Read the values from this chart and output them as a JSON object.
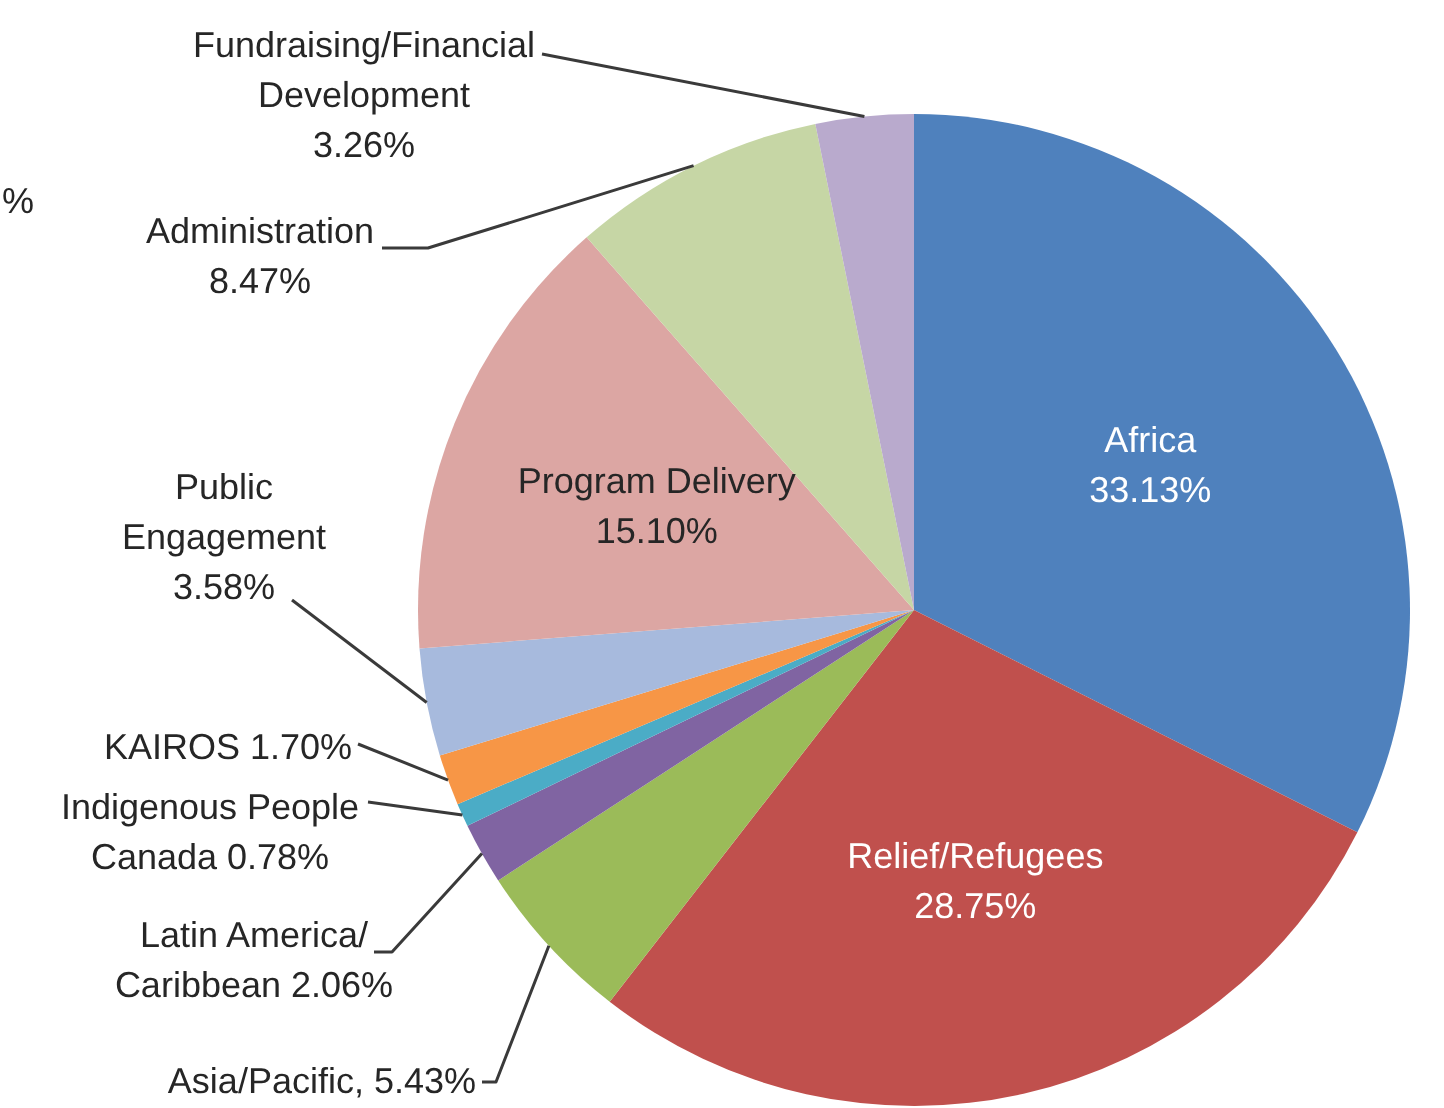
{
  "chart_data": {
    "type": "pie",
    "categories": [
      "Africa",
      "Relief/Refugees",
      "Asia/Pacific",
      "Latin America/Caribbean",
      "Indigenous People Canada",
      "KAIROS",
      "Public Engagement",
      "Program Delivery",
      "Administration",
      "Fundraising/Financial Development"
    ],
    "values": [
      33.13,
      28.75,
      5.43,
      2.06,
      0.78,
      1.7,
      3.58,
      15.1,
      8.47,
      3.26
    ],
    "colors": [
      "#4f81bd",
      "#c0504d",
      "#9bbb59",
      "#8064a2",
      "#4bacc6",
      "#f79646",
      "#a7badd",
      "#dca6a3",
      "#c6d6a5",
      "#b9aacd"
    ],
    "value_labels": [
      "33.13%",
      "28.75%",
      "5.43%",
      "2.06%",
      "0.78%",
      "1.70%",
      "3.58%",
      "15.10%",
      "8.47%",
      "3.26%"
    ],
    "annotations": [
      "%"
    ]
  }
}
